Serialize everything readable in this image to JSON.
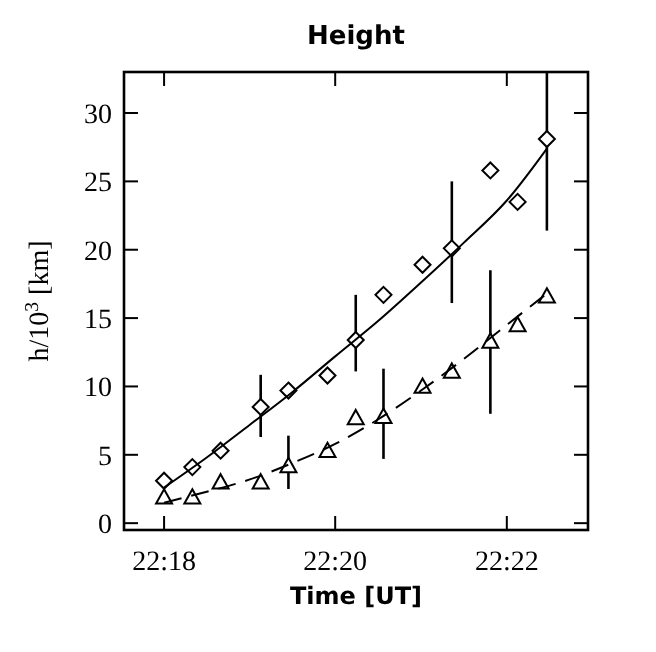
{
  "chart_data": {
    "type": "scatter",
    "title": "Height",
    "xlabel": "Time [UT]",
    "ylabel": "h/10$^{3}$ [km]",
    "xlim": [
      22.2922,
      22.3825
    ],
    "ylim": [
      -0.5,
      33
    ],
    "xticks": [
      {
        "value": 22.3,
        "label": "22:18"
      },
      {
        "value": 22.3333,
        "label": "22:20"
      },
      {
        "value": 22.3667,
        "label": "22:22"
      }
    ],
    "yticks": [
      0,
      5,
      10,
      15,
      20,
      25,
      30
    ],
    "grid": false,
    "series": [
      {
        "type": "scatter",
        "marker": "diamond",
        "color": "#000000",
        "x": [
          22.3,
          22.3055,
          22.311,
          22.3188,
          22.3242,
          22.3318,
          22.3373,
          22.3427,
          22.3503,
          22.356,
          22.3635,
          22.3688,
          22.3745
        ],
        "values": [
          3.1,
          4.1,
          5.3,
          8.5,
          9.7,
          10.8,
          13.4,
          16.7,
          18.9,
          20.1,
          25.8,
          23.5,
          28.1
        ],
        "errors": [
          null,
          null,
          null,
          [
            6.3,
            10.85
          ],
          null,
          null,
          [
            11.1,
            16.7
          ],
          null,
          null,
          [
            16.1,
            25.0
          ],
          null,
          null,
          [
            21.4,
            33
          ]
        ]
      },
      {
        "type": "scatter",
        "marker": "triangle",
        "color": "#000000",
        "x": [
          22.3,
          22.3055,
          22.311,
          22.3188,
          22.3242,
          22.3318,
          22.3373,
          22.3427,
          22.3503,
          22.356,
          22.3635,
          22.3688,
          22.3745
        ],
        "values": [
          1.9,
          1.9,
          3.0,
          3.0,
          4.2,
          5.3,
          7.7,
          7.8,
          10.0,
          11.1,
          13.3,
          14.5,
          16.6
        ],
        "errors": [
          null,
          null,
          null,
          null,
          [
            2.5,
            6.4
          ],
          null,
          null,
          [
            4.7,
            11.3
          ],
          null,
          null,
          [
            8.0,
            18.5
          ],
          null,
          null
        ]
      },
      {
        "type": "line",
        "marker": "none",
        "line_style": "solid",
        "color": "#000000",
        "x": [
          22.3,
          22.3083,
          22.3167,
          22.325,
          22.3333,
          22.3417,
          22.35,
          22.3583,
          22.3667,
          22.3745
        ],
        "values": [
          2.6,
          4.8,
          7.2,
          9.6,
          12.2,
          14.8,
          17.6,
          20.5,
          23.6,
          27.4
        ]
      },
      {
        "type": "line",
        "marker": "none",
        "line_style": "dashed",
        "color": "#000000",
        "x": [
          22.3,
          22.3083,
          22.3167,
          22.325,
          22.3333,
          22.3417,
          22.35,
          22.3583,
          22.3667,
          22.3745
        ],
        "values": [
          1.5,
          2.3,
          3.2,
          4.4,
          5.8,
          7.6,
          9.7,
          12.0,
          14.5,
          16.8
        ]
      }
    ]
  }
}
